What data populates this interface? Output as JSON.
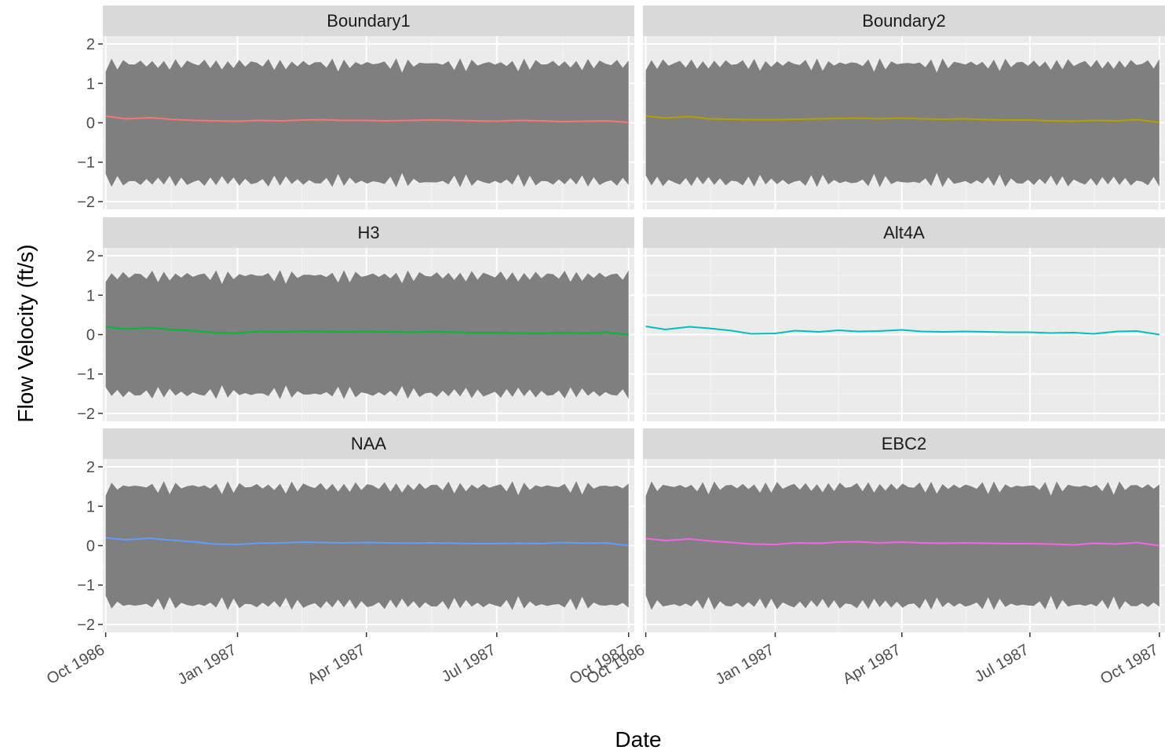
{
  "chart_data": {
    "type": "line",
    "layout": "facet grid 3 rows x 2 columns",
    "xlabel": "Date",
    "ylabel": "Flow Velocity (ft/s)",
    "ylim": [
      -2.2,
      2.2
    ],
    "yticks": [
      2,
      1,
      0,
      -1,
      -2
    ],
    "ytick_labels": [
      "2",
      "1",
      "0",
      "−1",
      "−2"
    ],
    "xlim": [
      "1986-09-29",
      "1987-10-05"
    ],
    "xticks": [
      "1986-10-01",
      "1987-01-01",
      "1987-04-01",
      "1987-07-01",
      "1987-10-01"
    ],
    "xtick_labels": [
      "Oct 1986",
      "Jan 1987",
      "Apr 1987",
      "Jul 1987",
      "Oct 1987"
    ],
    "grid": true,
    "legend": "none",
    "panel_background": "#ebebeb",
    "strip_background": "#d9d9d9",
    "band_color": "#7f7f7f",
    "band_range": {
      "upper_base": 1.45,
      "lower_base": -1.45,
      "amplitude": 0.15
    },
    "panels": [
      {
        "title": "Boundary1",
        "color": "#f8766d",
        "has_band": true,
        "series": [
          {
            "date": "1986-10-01",
            "value": 0.17
          },
          {
            "date": "1986-10-15",
            "value": 0.1
          },
          {
            "date": "1986-11-01",
            "value": 0.13
          },
          {
            "date": "1986-11-15",
            "value": 0.09
          },
          {
            "date": "1986-12-01",
            "value": 0.06
          },
          {
            "date": "1986-12-15",
            "value": 0.05
          },
          {
            "date": "1987-01-01",
            "value": 0.04
          },
          {
            "date": "1987-01-15",
            "value": 0.06
          },
          {
            "date": "1987-02-01",
            "value": 0.05
          },
          {
            "date": "1987-02-15",
            "value": 0.07
          },
          {
            "date": "1987-03-01",
            "value": 0.08
          },
          {
            "date": "1987-03-15",
            "value": 0.06
          },
          {
            "date": "1987-04-01",
            "value": 0.06
          },
          {
            "date": "1987-04-15",
            "value": 0.05
          },
          {
            "date": "1987-05-01",
            "value": 0.06
          },
          {
            "date": "1987-05-15",
            "value": 0.07
          },
          {
            "date": "1987-06-01",
            "value": 0.06
          },
          {
            "date": "1987-06-15",
            "value": 0.05
          },
          {
            "date": "1987-07-01",
            "value": 0.04
          },
          {
            "date": "1987-07-15",
            "value": 0.06
          },
          {
            "date": "1987-08-01",
            "value": 0.05
          },
          {
            "date": "1987-08-15",
            "value": 0.03
          },
          {
            "date": "1987-09-01",
            "value": 0.04
          },
          {
            "date": "1987-09-15",
            "value": 0.05
          },
          {
            "date": "1987-10-01",
            "value": 0.01
          }
        ]
      },
      {
        "title": "Boundary2",
        "color": "#b79f00",
        "has_band": true,
        "series": [
          {
            "date": "1986-10-01",
            "value": 0.17
          },
          {
            "date": "1986-10-15",
            "value": 0.12
          },
          {
            "date": "1986-11-01",
            "value": 0.16
          },
          {
            "date": "1986-11-15",
            "value": 0.1
          },
          {
            "date": "1986-12-01",
            "value": 0.09
          },
          {
            "date": "1986-12-15",
            "value": 0.08
          },
          {
            "date": "1987-01-01",
            "value": 0.08
          },
          {
            "date": "1987-01-15",
            "value": 0.09
          },
          {
            "date": "1987-02-01",
            "value": 0.1
          },
          {
            "date": "1987-02-15",
            "value": 0.11
          },
          {
            "date": "1987-03-01",
            "value": 0.12
          },
          {
            "date": "1987-03-15",
            "value": 0.1
          },
          {
            "date": "1987-04-01",
            "value": 0.12
          },
          {
            "date": "1987-04-15",
            "value": 0.1
          },
          {
            "date": "1987-05-01",
            "value": 0.09
          },
          {
            "date": "1987-05-15",
            "value": 0.1
          },
          {
            "date": "1987-06-01",
            "value": 0.08
          },
          {
            "date": "1987-06-15",
            "value": 0.07
          },
          {
            "date": "1987-07-01",
            "value": 0.07
          },
          {
            "date": "1987-07-15",
            "value": 0.05
          },
          {
            "date": "1987-08-01",
            "value": 0.04
          },
          {
            "date": "1987-08-15",
            "value": 0.06
          },
          {
            "date": "1987-09-01",
            "value": 0.05
          },
          {
            "date": "1987-09-15",
            "value": 0.08
          },
          {
            "date": "1987-10-01",
            "value": 0.01
          }
        ]
      },
      {
        "title": "H3",
        "color": "#00ba38",
        "has_band": true,
        "series": [
          {
            "date": "1986-10-01",
            "value": 0.2
          },
          {
            "date": "1986-10-15",
            "value": 0.14
          },
          {
            "date": "1986-11-01",
            "value": 0.18
          },
          {
            "date": "1986-11-15",
            "value": 0.13
          },
          {
            "date": "1986-12-01",
            "value": 0.1
          },
          {
            "date": "1986-12-15",
            "value": 0.05
          },
          {
            "date": "1987-01-01",
            "value": 0.04
          },
          {
            "date": "1987-01-15",
            "value": 0.08
          },
          {
            "date": "1987-02-01",
            "value": 0.07
          },
          {
            "date": "1987-02-15",
            "value": 0.09
          },
          {
            "date": "1987-03-01",
            "value": 0.08
          },
          {
            "date": "1987-03-15",
            "value": 0.07
          },
          {
            "date": "1987-04-01",
            "value": 0.08
          },
          {
            "date": "1987-04-15",
            "value": 0.07
          },
          {
            "date": "1987-05-01",
            "value": 0.06
          },
          {
            "date": "1987-05-15",
            "value": 0.07
          },
          {
            "date": "1987-06-01",
            "value": 0.06
          },
          {
            "date": "1987-06-15",
            "value": 0.05
          },
          {
            "date": "1987-07-01",
            "value": 0.05
          },
          {
            "date": "1987-07-15",
            "value": 0.04
          },
          {
            "date": "1987-08-01",
            "value": 0.03
          },
          {
            "date": "1987-08-15",
            "value": 0.05
          },
          {
            "date": "1987-09-01",
            "value": 0.04
          },
          {
            "date": "1987-09-15",
            "value": 0.06
          },
          {
            "date": "1987-10-01",
            "value": 0.0
          }
        ]
      },
      {
        "title": "Alt4A",
        "color": "#00bfc4",
        "has_band": false,
        "series": [
          {
            "date": "1986-10-01",
            "value": 0.21
          },
          {
            "date": "1986-10-15",
            "value": 0.13
          },
          {
            "date": "1986-11-01",
            "value": 0.2
          },
          {
            "date": "1986-11-15",
            "value": 0.16
          },
          {
            "date": "1986-12-01",
            "value": 0.1
          },
          {
            "date": "1986-12-15",
            "value": 0.02
          },
          {
            "date": "1987-01-01",
            "value": 0.03
          },
          {
            "date": "1987-01-15",
            "value": 0.1
          },
          {
            "date": "1987-02-01",
            "value": 0.07
          },
          {
            "date": "1987-02-15",
            "value": 0.11
          },
          {
            "date": "1987-03-01",
            "value": 0.08
          },
          {
            "date": "1987-03-15",
            "value": 0.09
          },
          {
            "date": "1987-04-01",
            "value": 0.12
          },
          {
            "date": "1987-04-15",
            "value": 0.08
          },
          {
            "date": "1987-05-01",
            "value": 0.07
          },
          {
            "date": "1987-05-15",
            "value": 0.08
          },
          {
            "date": "1987-06-01",
            "value": 0.07
          },
          {
            "date": "1987-06-15",
            "value": 0.06
          },
          {
            "date": "1987-07-01",
            "value": 0.06
          },
          {
            "date": "1987-07-15",
            "value": 0.04
          },
          {
            "date": "1987-08-01",
            "value": 0.05
          },
          {
            "date": "1987-08-15",
            "value": 0.02
          },
          {
            "date": "1987-09-01",
            "value": 0.08
          },
          {
            "date": "1987-09-15",
            "value": 0.09
          },
          {
            "date": "1987-10-01",
            "value": 0.0
          }
        ]
      },
      {
        "title": "NAA",
        "color": "#619cff",
        "has_band": true,
        "series": [
          {
            "date": "1986-10-01",
            "value": 0.2
          },
          {
            "date": "1986-10-15",
            "value": 0.15
          },
          {
            "date": "1986-11-01",
            "value": 0.19
          },
          {
            "date": "1986-11-15",
            "value": 0.14
          },
          {
            "date": "1986-12-01",
            "value": 0.1
          },
          {
            "date": "1986-12-15",
            "value": 0.04
          },
          {
            "date": "1987-01-01",
            "value": 0.03
          },
          {
            "date": "1987-01-15",
            "value": 0.06
          },
          {
            "date": "1987-02-01",
            "value": 0.07
          },
          {
            "date": "1987-02-15",
            "value": 0.09
          },
          {
            "date": "1987-03-01",
            "value": 0.08
          },
          {
            "date": "1987-03-15",
            "value": 0.07
          },
          {
            "date": "1987-04-01",
            "value": 0.08
          },
          {
            "date": "1987-04-15",
            "value": 0.07
          },
          {
            "date": "1987-05-01",
            "value": 0.06
          },
          {
            "date": "1987-05-15",
            "value": 0.07
          },
          {
            "date": "1987-06-01",
            "value": 0.06
          },
          {
            "date": "1987-06-15",
            "value": 0.05
          },
          {
            "date": "1987-07-01",
            "value": 0.05
          },
          {
            "date": "1987-07-15",
            "value": 0.06
          },
          {
            "date": "1987-08-01",
            "value": 0.05
          },
          {
            "date": "1987-08-15",
            "value": 0.08
          },
          {
            "date": "1987-09-01",
            "value": 0.06
          },
          {
            "date": "1987-09-15",
            "value": 0.07
          },
          {
            "date": "1987-10-01",
            "value": 0.0
          }
        ]
      },
      {
        "title": "EBC2",
        "color": "#f564e3",
        "has_band": true,
        "series": [
          {
            "date": "1986-10-01",
            "value": 0.18
          },
          {
            "date": "1986-10-15",
            "value": 0.13
          },
          {
            "date": "1986-11-01",
            "value": 0.17
          },
          {
            "date": "1986-11-15",
            "value": 0.12
          },
          {
            "date": "1986-12-01",
            "value": 0.08
          },
          {
            "date": "1986-12-15",
            "value": 0.04
          },
          {
            "date": "1987-01-01",
            "value": 0.03
          },
          {
            "date": "1987-01-15",
            "value": 0.07
          },
          {
            "date": "1987-02-01",
            "value": 0.06
          },
          {
            "date": "1987-02-15",
            "value": 0.09
          },
          {
            "date": "1987-03-01",
            "value": 0.1
          },
          {
            "date": "1987-03-15",
            "value": 0.07
          },
          {
            "date": "1987-04-01",
            "value": 0.09
          },
          {
            "date": "1987-04-15",
            "value": 0.07
          },
          {
            "date": "1987-05-01",
            "value": 0.06
          },
          {
            "date": "1987-05-15",
            "value": 0.07
          },
          {
            "date": "1987-06-01",
            "value": 0.06
          },
          {
            "date": "1987-06-15",
            "value": 0.05
          },
          {
            "date": "1987-07-01",
            "value": 0.05
          },
          {
            "date": "1987-07-15",
            "value": 0.04
          },
          {
            "date": "1987-08-01",
            "value": 0.02
          },
          {
            "date": "1987-08-15",
            "value": 0.06
          },
          {
            "date": "1987-09-01",
            "value": 0.04
          },
          {
            "date": "1987-09-15",
            "value": 0.08
          },
          {
            "date": "1987-10-01",
            "value": 0.0
          }
        ]
      }
    ]
  }
}
